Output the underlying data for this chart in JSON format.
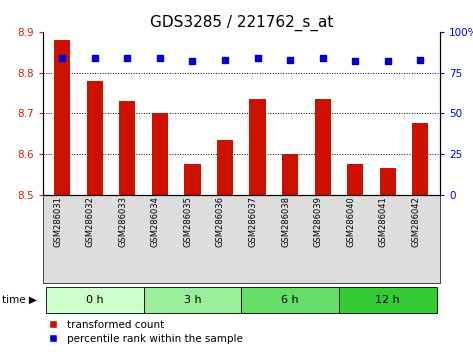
{
  "title": "GDS3285 / 221762_s_at",
  "samples": [
    "GSM286031",
    "GSM286032",
    "GSM286033",
    "GSM286034",
    "GSM286035",
    "GSM286036",
    "GSM286037",
    "GSM286038",
    "GSM286039",
    "GSM286040",
    "GSM286041",
    "GSM286042"
  ],
  "bar_values": [
    8.88,
    8.78,
    8.73,
    8.7,
    8.575,
    8.635,
    8.735,
    8.6,
    8.735,
    8.575,
    8.565,
    8.675
  ],
  "percentile_values": [
    84,
    84,
    84,
    84,
    82,
    83,
    84,
    83,
    84,
    82,
    82,
    83
  ],
  "ylim_left": [
    8.5,
    8.9
  ],
  "ylim_right": [
    0,
    100
  ],
  "yticks_left": [
    8.5,
    8.6,
    8.7,
    8.8,
    8.9
  ],
  "yticks_right": [
    0,
    25,
    50,
    75,
    100
  ],
  "bar_color": "#cc1100",
  "dot_color": "#0000cc",
  "time_groups": [
    {
      "label": "0 h",
      "start": 0,
      "end": 3,
      "color": "#ccffcc"
    },
    {
      "label": "3 h",
      "start": 3,
      "end": 6,
      "color": "#99ee99"
    },
    {
      "label": "6 h",
      "start": 6,
      "end": 9,
      "color": "#66dd66"
    },
    {
      "label": "12 h",
      "start": 9,
      "end": 12,
      "color": "#33cc33"
    }
  ],
  "legend_bar_label": "transformed count",
  "legend_dot_label": "percentile rank within the sample",
  "bar_width": 0.5,
  "dot_size": 25,
  "title_fontsize": 11,
  "tick_fontsize": 7.5,
  "sample_fontsize": 6
}
